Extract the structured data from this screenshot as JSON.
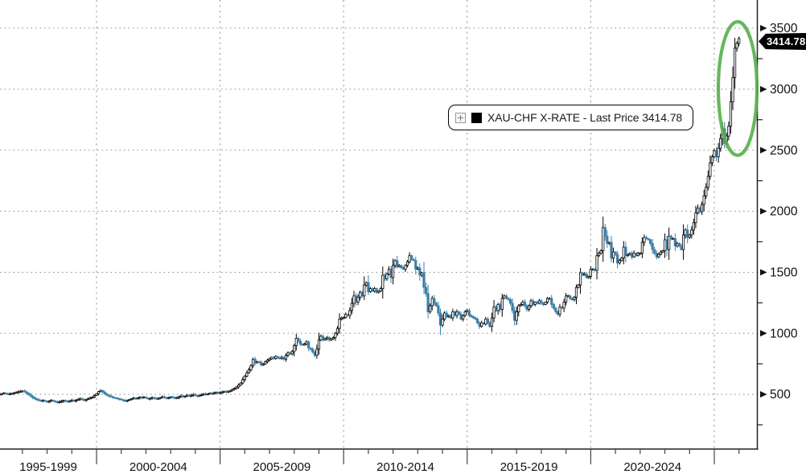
{
  "legend": {
    "expand_icon": "plus-box-icon",
    "swatch_color": "#000000",
    "label": "XAU-CHF X-RATE - Last Price 3414.78"
  },
  "price_tag": {
    "value": "3414.78",
    "bg": "#000000",
    "fg": "#ffffff"
  },
  "annotation": {
    "shape": "ellipse",
    "color": "#55b04a",
    "meaning": "highlight of final price spike"
  },
  "colors": {
    "up_bar": "#000000",
    "down_bar": "#3c7fa6",
    "grid": "#8c8c8c",
    "axis": "#222222",
    "background": "#ffffff"
  },
  "y_axis": {
    "side": "right",
    "major_ticks": [
      500,
      1000,
      1500,
      2000,
      2500,
      3000,
      3500
    ],
    "minor_tick_step": 250,
    "marker": "right-arrow"
  },
  "x_axis": {
    "span_labels": [
      "1995-1999",
      "2000-2004",
      "2005-2009",
      "2010-2014",
      "2015-2019",
      "2020-2024"
    ],
    "years_per_span": 5,
    "minor_tick": "yearly"
  },
  "chart_data": {
    "type": "candlestick",
    "symbol": "XAU-CHF X-RATE",
    "title": "XAU-CHF X-RATE - Last Price 3414.78",
    "last_price": 3414.78,
    "frequency": "monthly",
    "start_year": 1996,
    "end_year": 2026,
    "ylim": [
      0,
      3700
    ],
    "grid": "dotted",
    "legend_position": "center",
    "series": [
      {
        "name": "XAU-CHF X-RATE",
        "values": [
          498,
          502,
          506,
          510,
          506,
          502,
          505,
          508,
          512,
          516,
          520,
          524,
          528,
          520,
          510,
          498,
          486,
          474,
          464,
          456,
          450,
          446,
          450,
          444,
          440,
          446,
          452,
          446,
          440,
          434,
          438,
          444,
          450,
          446,
          442,
          446,
          450,
          446,
          452,
          458,
          464,
          458,
          452,
          458,
          464,
          470,
          478,
          490,
          505,
          522,
          532,
          518,
          504,
          494,
          486,
          480,
          474,
          470,
          466,
          462,
          456,
          450,
          446,
          452,
          458,
          464,
          470,
          464,
          470,
          478,
          472,
          478,
          470,
          462,
          468,
          474,
          468,
          462,
          468,
          474,
          480,
          474,
          468,
          474,
          480,
          474,
          468,
          474,
          480,
          486,
          480,
          486,
          492,
          486,
          492,
          498,
          492,
          486,
          492,
          498,
          504,
          498,
          504,
          510,
          504,
          510,
          516,
          510,
          514,
          518,
          524,
          518,
          526,
          532,
          540,
          548,
          560,
          576,
          592,
          620,
          648,
          676,
          700,
          736,
          788,
          758,
          768,
          762,
          740,
          750,
          768,
          780,
          790,
          804,
          794,
          810,
          798,
          794,
          804,
          788,
          820,
          840,
          830,
          850,
          900,
          958,
          936,
          910,
          904,
          914,
          930,
          880,
          870,
          846,
          820,
          870,
          946,
          976,
          946,
          956,
          966,
          946,
          956,
          966,
          1000,
          1040,
          1116,
          1126,
          1130,
          1156,
          1146,
          1186,
          1246,
          1306,
          1256,
          1296,
          1336,
          1306,
          1396,
          1416,
          1340,
          1366,
          1346,
          1366,
          1336,
          1346,
          1366,
          1476,
          1446,
          1486,
          1526,
          1456,
          1556,
          1596,
          1546,
          1556,
          1536,
          1526,
          1556,
          1586,
          1636,
          1606,
          1596,
          1526,
          1536,
          1476,
          1496,
          1376,
          1326,
          1176,
          1226,
          1286,
          1246,
          1226,
          1166,
          1066,
          1116,
          1166,
          1136,
          1146,
          1126,
          1176,
          1146,
          1176,
          1156,
          1116,
          1146,
          1176,
          1186,
          1146,
          1136,
          1126,
          1116,
          1086,
          1056,
          1086,
          1076,
          1116,
          1086,
          1056,
          1126,
          1216,
          1186,
          1236,
          1196,
          1286,
          1306,
          1286,
          1276,
          1246,
          1186,
          1106,
          1176,
          1226,
          1236,
          1256,
          1226,
          1196,
          1226,
          1266,
          1236,
          1256,
          1246,
          1266,
          1246,
          1236,
          1256,
          1286,
          1286,
          1236,
          1206,
          1176,
          1156,
          1216,
          1206,
          1256,
          1306,
          1306,
          1286,
          1276,
          1296,
          1376,
          1396,
          1496,
          1476,
          1486,
          1456,
          1466,
          1526,
          1526,
          1516,
          1636,
          1656,
          1676,
          1866,
          1796,
          1736,
          1746,
          1616,
          1666,
          1646,
          1576,
          1596,
          1616,
          1706,
          1636,
          1646,
          1656,
          1626,
          1656,
          1636,
          1656,
          1656,
          1746,
          1786,
          1776,
          1766,
          1736,
          1686,
          1656,
          1626,
          1646,
          1666,
          1676,
          1766,
          1686,
          1796,
          1776,
          1776,
          1716,
          1736,
          1716,
          1686,
          1806,
          1846,
          1786,
          1806,
          1846,
          1906,
          1986,
          2026,
          1996,
          2056,
          2126,
          2196,
          2286,
          2396,
          2446,
          2496,
          2446,
          2516,
          2596,
          2676,
          2556,
          2616,
          2696,
          2896,
          3096,
          3336,
          3376,
          3414.78
        ]
      }
    ]
  }
}
